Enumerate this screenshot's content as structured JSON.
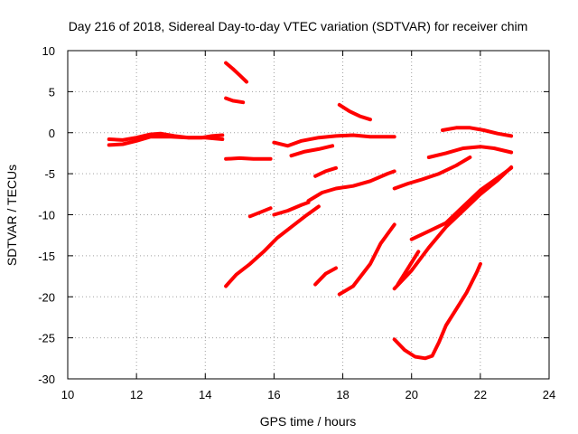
{
  "chart_data": {
    "type": "scatter",
    "title": "Day 216 of 2018, Sidereal Day-to-day VTEC variation (SDTVAR) for receiver chim",
    "xlabel": "GPS time / hours",
    "ylabel": "SDTVAR / TECUs",
    "xlim": [
      10,
      24
    ],
    "ylim": [
      -30,
      10
    ],
    "xticks": [
      "10",
      "12",
      "14",
      "16",
      "18",
      "20",
      "22",
      "24"
    ],
    "yticks": [
      "10",
      "5",
      "0",
      "-5",
      "-10",
      "-15",
      "-20",
      "-25",
      "-30"
    ],
    "grid": true,
    "legend": "none",
    "color": "#ff0000",
    "series": [
      {
        "x": [
          11.2,
          11.6,
          12.0,
          12.4,
          12.7,
          13.1,
          13.5,
          13.9,
          14.2,
          14.5
        ],
        "y": [
          -0.8,
          -0.9,
          -0.6,
          -0.2,
          -0.1,
          -0.4,
          -0.6,
          -0.6,
          -0.4,
          -0.3
        ]
      },
      {
        "x": [
          11.2,
          11.6,
          12.0,
          12.4,
          13.0,
          13.5,
          14.0,
          14.5
        ],
        "y": [
          -1.5,
          -1.4,
          -1.0,
          -0.5,
          -0.5,
          -0.6,
          -0.6,
          -0.8
        ]
      },
      {
        "x": [
          14.6,
          14.8,
          15.0,
          15.2
        ],
        "y": [
          8.5,
          7.8,
          7.0,
          6.2
        ]
      },
      {
        "x": [
          14.6,
          14.8,
          15.1
        ],
        "y": [
          4.2,
          3.9,
          3.7
        ]
      },
      {
        "x": [
          14.6,
          15.0,
          15.4,
          15.9
        ],
        "y": [
          -3.2,
          -3.1,
          -3.2,
          -3.2
        ]
      },
      {
        "x": [
          14.6,
          14.9,
          15.3,
          15.7,
          16.1,
          16.5,
          16.9,
          17.3
        ],
        "y": [
          -18.7,
          -17.3,
          -16.0,
          -14.5,
          -12.8,
          -11.5,
          -10.2,
          -9.0
        ]
      },
      {
        "x": [
          15.3,
          15.6,
          15.9
        ],
        "y": [
          -10.2,
          -9.7,
          -9.2
        ]
      },
      {
        "x": [
          16.0,
          16.4,
          16.8,
          17.0
        ],
        "y": [
          -10.0,
          -9.5,
          -8.8,
          -8.5
        ]
      },
      {
        "x": [
          16.0,
          16.4,
          16.8,
          17.3,
          17.8,
          18.3,
          18.8,
          19.2,
          19.5
        ],
        "y": [
          -1.2,
          -1.6,
          -1.0,
          -0.6,
          -0.4,
          -0.3,
          -0.5,
          -0.5,
          -0.5
        ]
      },
      {
        "x": [
          16.5,
          16.9,
          17.3,
          17.7
        ],
        "y": [
          -2.8,
          -2.3,
          -2.0,
          -1.6
        ]
      },
      {
        "x": [
          17.0,
          17.4,
          17.8,
          18.3,
          18.8,
          19.3,
          19.5
        ],
        "y": [
          -8.3,
          -7.3,
          -6.8,
          -6.5,
          -5.9,
          -5.0,
          -4.7
        ]
      },
      {
        "x": [
          17.2,
          17.5,
          17.8
        ],
        "y": [
          -5.3,
          -4.7,
          -4.3
        ]
      },
      {
        "x": [
          17.2,
          17.5,
          17.8
        ],
        "y": [
          -18.5,
          -17.2,
          -16.5
        ]
      },
      {
        "x": [
          17.9,
          18.2,
          18.5,
          18.8
        ],
        "y": [
          3.4,
          2.6,
          2.0,
          1.6
        ]
      },
      {
        "x": [
          17.9,
          18.3,
          18.8,
          19.1,
          19.5
        ],
        "y": [
          -19.7,
          -18.7,
          -16.0,
          -13.5,
          -11.2
        ]
      },
      {
        "x": [
          19.5,
          19.9,
          20.3,
          20.8,
          21.3,
          21.7
        ],
        "y": [
          -6.8,
          -6.2,
          -5.7,
          -5.0,
          -4.0,
          -3.0
        ]
      },
      {
        "x": [
          19.5,
          20.0,
          20.5,
          21.0,
          21.5,
          22.0,
          22.5,
          22.9
        ],
        "y": [
          -19.0,
          -16.8,
          -14.0,
          -11.5,
          -9.5,
          -7.5,
          -5.8,
          -4.2
        ]
      },
      {
        "x": [
          19.6,
          19.9,
          20.2
        ],
        "y": [
          -18.5,
          -16.5,
          -14.5
        ]
      },
      {
        "x": [
          20.0,
          20.5,
          21.0,
          21.5,
          22.0,
          22.5,
          22.9
        ],
        "y": [
          -13.0,
          -12.0,
          -11.0,
          -9.0,
          -7.0,
          -5.5,
          -4.3
        ]
      },
      {
        "x": [
          19.5,
          19.8,
          20.1,
          20.4,
          20.6,
          20.8,
          21.0,
          21.3,
          21.6,
          21.9,
          22.0
        ],
        "y": [
          -25.2,
          -26.5,
          -27.3,
          -27.5,
          -27.2,
          -25.5,
          -23.5,
          -21.5,
          -19.5,
          -17.0,
          -16.0
        ]
      },
      {
        "x": [
          20.9,
          21.3,
          21.7,
          22.1,
          22.5,
          22.9
        ],
        "y": [
          0.3,
          0.6,
          0.6,
          0.3,
          -0.1,
          -0.4
        ]
      },
      {
        "x": [
          20.5,
          21.0,
          21.5,
          22.0,
          22.4,
          22.9
        ],
        "y": [
          -3.0,
          -2.5,
          -1.9,
          -1.7,
          -1.9,
          -2.4
        ]
      }
    ]
  }
}
